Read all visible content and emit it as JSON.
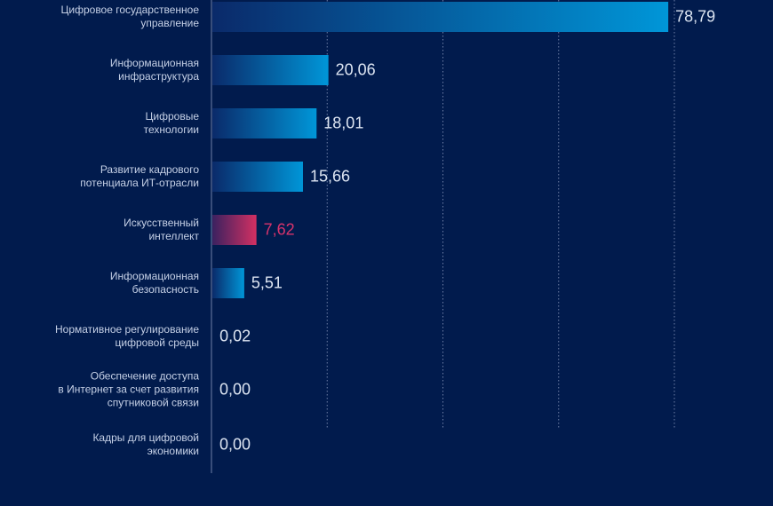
{
  "chart_data": {
    "type": "bar",
    "orientation": "horizontal",
    "categories": [
      "Цифровое государственное\nуправление",
      "Информационная\nинфраструктура",
      "Цифровые\nтехнологии",
      "Развитие кадрового\nпотенциала ИТ-отрасли",
      "Искусственный\nинтеллект",
      "Информационная\nбезопасность",
      "Нормативное регулирование\nцифровой среды",
      "Обеспечение доступа\nв Интернет за счет развития\nспутниковой связи",
      "Кадры для цифровой\nэкономики"
    ],
    "values": [
      78.79,
      20.06,
      18.01,
      15.66,
      7.62,
      5.51,
      0.02,
      0.0,
      0.0
    ],
    "value_labels": [
      "78,79",
      "20,06",
      "18,01",
      "15,66",
      "7,62",
      "5,51",
      "0,02",
      "0,00",
      "0,00"
    ],
    "highlighted_index": 4,
    "xlim": [
      0,
      80
    ],
    "gridlines": [
      20,
      40,
      60,
      80
    ],
    "grid": true,
    "colors": {
      "background": "#011b4d",
      "bar": "#0096d8",
      "highlight": "#d33062",
      "bar_start": "#0a2a6a"
    }
  }
}
